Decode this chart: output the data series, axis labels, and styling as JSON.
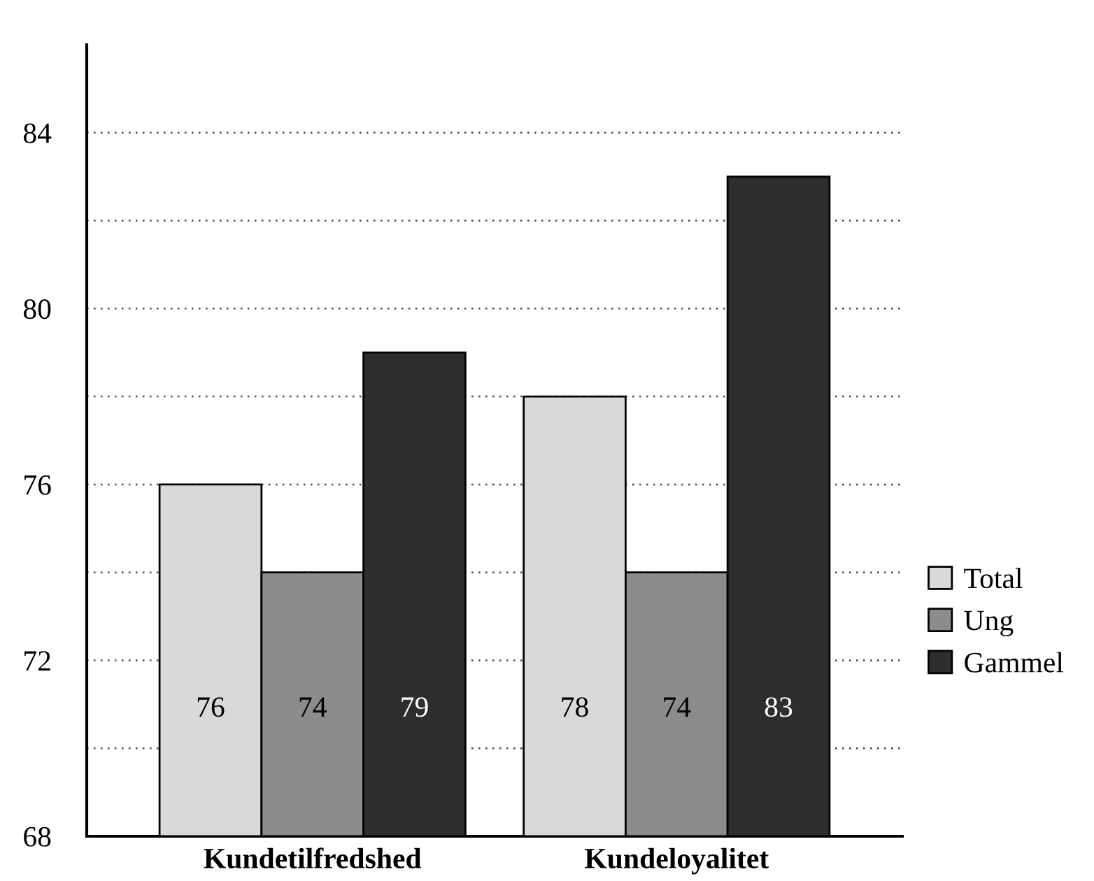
{
  "chart_data": {
    "type": "bar",
    "categories": [
      "Kundetilfredshed",
      "Kundeloyalitet"
    ],
    "series": [
      {
        "name": "Total",
        "color": "#d9d9d9",
        "values": [
          76,
          78
        ]
      },
      {
        "name": "Ung",
        "color": "#8c8c8c",
        "values": [
          74,
          74
        ]
      },
      {
        "name": "Gammel",
        "color": "#2e2e2e",
        "values": [
          79,
          83
        ]
      }
    ],
    "ylim": [
      68,
      86
    ],
    "yticks": [
      68,
      {
        "value": 70,
        "label": null
      },
      72,
      {
        "value": 74,
        "label": null
      },
      76,
      {
        "value": 78,
        "label": null
      },
      80,
      {
        "value": 82,
        "label": null
      },
      84
    ],
    "grid": "y",
    "legend": "right",
    "data_labels": true
  }
}
